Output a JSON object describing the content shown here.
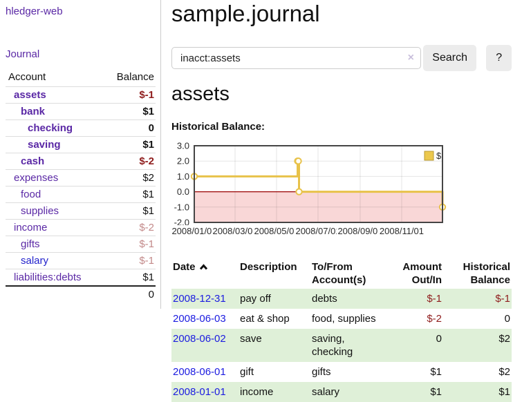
{
  "app": {
    "brand": "hledger-web"
  },
  "colors": {
    "link_purple": "#5a28a5",
    "link_blue_unvisited": "#2222cc",
    "date_link_blue": "#1b1be0",
    "negative": "#8f1d1d",
    "negative_dimmed": "#c38a8a",
    "row_stripe_green": "#dff0d8",
    "button_gray": "#ececec",
    "chart_gold": "#e8c24a"
  },
  "sidebar": {
    "nav": {
      "journal_label": "Journal"
    },
    "accounts_table": {
      "headers": [
        "Account",
        "Balance"
      ],
      "rows": [
        {
          "name": "assets",
          "balance": "$-1",
          "indent": 1,
          "bold": true,
          "balance_negative": true
        },
        {
          "name": "bank",
          "balance": "$1",
          "indent": 2,
          "bold": true
        },
        {
          "name": "checking",
          "balance": "0",
          "indent": 3,
          "bold": true
        },
        {
          "name": "saving",
          "balance": "$1",
          "indent": 3,
          "bold": true
        },
        {
          "name": "cash",
          "balance": "$-2",
          "indent": 2,
          "bold": true,
          "balance_negative": true
        },
        {
          "name": "expenses",
          "balance": "$2",
          "indent": 1
        },
        {
          "name": "food",
          "balance": "$1",
          "indent": 2
        },
        {
          "name": "supplies",
          "balance": "$1",
          "indent": 2
        },
        {
          "name": "income",
          "balance": "$-2",
          "indent": 1,
          "balance_dimmed": true
        },
        {
          "name": "gifts",
          "balance": "$-1",
          "indent": 2,
          "balance_dimmed": true
        },
        {
          "name": "salary",
          "balance": "$-1",
          "indent": 2,
          "balance_dimmed": true,
          "link_unvisited": true
        },
        {
          "name": "liabilities:debts",
          "balance": "$1",
          "indent": 1
        }
      ],
      "total": "0"
    }
  },
  "header": {
    "title": "sample.journal"
  },
  "search": {
    "value": "inacct:assets",
    "clear_icon": "×",
    "button_label": "Search",
    "help_label": "?"
  },
  "account_page": {
    "heading": "assets",
    "chart_label": "Historical Balance:"
  },
  "chart_data": {
    "type": "line",
    "step": true,
    "title": "Historical Balance:",
    "series": [
      {
        "name": "$",
        "points": [
          [
            "2008-01-01",
            1
          ],
          [
            "2008-06-01",
            2
          ],
          [
            "2008-06-02",
            2
          ],
          [
            "2008-06-03",
            0
          ],
          [
            "2008-12-31",
            -1
          ]
        ]
      }
    ],
    "x_range": [
      "2008-01-01",
      "2008-12-31"
    ],
    "ylim": [
      -2,
      3
    ],
    "y_ticks": [
      {
        "v": 3,
        "label": "3.0"
      },
      {
        "v": 2,
        "label": "2.0"
      },
      {
        "v": 1,
        "label": "1.0"
      },
      {
        "v": 0,
        "label": "0.0"
      },
      {
        "v": -1,
        "label": "-1.0"
      },
      {
        "v": -2,
        "label": "-2.0"
      }
    ],
    "x_ticks": [
      {
        "date": "2008-01-01",
        "label": "2008/01/01"
      },
      {
        "date": "2008-03-01",
        "label": "2008/03/01"
      },
      {
        "date": "2008-05-01",
        "label": "2008/05/01"
      },
      {
        "date": "2008-07-01",
        "label": "2008/07/01"
      },
      {
        "date": "2008-09-01",
        "label": "2008/09/01"
      },
      {
        "date": "2008-11-01",
        "label": "2008/11/01"
      }
    ],
    "legend": {
      "label": "$",
      "position": "top-right"
    },
    "grid": true,
    "colors": {
      "line": "#e8c24a",
      "marker_fill": "#fffdf5",
      "negative_region": "#f9d7d7",
      "zero_line": "#990000",
      "legend_fill": "#ecc84d",
      "legend_border": "#b89a32",
      "border": "#454545"
    }
  },
  "transactions": {
    "headers": [
      "Date",
      "Description",
      "To/From Account(s)",
      "Amount Out/In",
      "Historical Balance"
    ],
    "sort": {
      "column": "Date",
      "direction": "ascending"
    },
    "rows": [
      {
        "date": "2008-12-31",
        "description": "pay off",
        "accounts": "debts",
        "amount": "$-1",
        "balance": "$-1",
        "amount_negative": true,
        "balance_negative": true
      },
      {
        "date": "2008-06-03",
        "description": "eat & shop",
        "accounts": "food, supplies",
        "amount": "$-2",
        "balance": "0",
        "amount_negative": true
      },
      {
        "date": "2008-06-02",
        "description": "save",
        "accounts": "saving, checking",
        "amount": "0",
        "balance": "$2"
      },
      {
        "date": "2008-06-01",
        "description": "gift",
        "accounts": "gifts",
        "amount": "$1",
        "balance": "$2"
      },
      {
        "date": "2008-01-01",
        "description": "income",
        "accounts": "salary",
        "amount": "$1",
        "balance": "$1"
      }
    ]
  }
}
